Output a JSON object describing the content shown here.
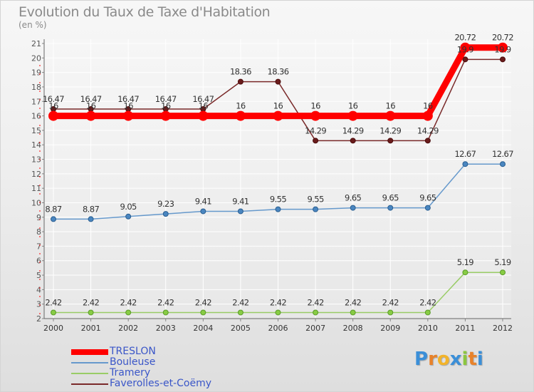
{
  "chart_data": {
    "type": "line",
    "title": "Evolution du Taux de Taxe d'Habitation",
    "ylabel": "(en %)",
    "xlabel": "",
    "ylim": [
      2,
      21
    ],
    "yticks": [
      2,
      3,
      4,
      5,
      6,
      7,
      8,
      9,
      10,
      11,
      12,
      13,
      14,
      15,
      16,
      17,
      18,
      19,
      20,
      21
    ],
    "categories": [
      "2000",
      "2001",
      "2002",
      "2003",
      "2004",
      "2005",
      "2006",
      "2007",
      "2008",
      "2009",
      "2010",
      "2011",
      "2012"
    ],
    "legend_position": "bottom-left",
    "series": [
      {
        "name": "TRESLON",
        "color": "#ff0000",
        "values": [
          16,
          16,
          16,
          16,
          16,
          16,
          16,
          16,
          16,
          16,
          16,
          20.72,
          20.72
        ],
        "labels": [
          "16",
          "16",
          "16",
          "16",
          "16",
          "16",
          "16",
          "16",
          "16",
          "16",
          "16",
          "20.72",
          "20.72"
        ]
      },
      {
        "name": "Bouleuse",
        "color": "#6699cc",
        "values": [
          8.87,
          8.87,
          9.05,
          9.23,
          9.41,
          9.41,
          9.55,
          9.55,
          9.65,
          9.65,
          9.65,
          12.67,
          12.67
        ],
        "labels": [
          "8.87",
          "8.87",
          "9.05",
          "9.23",
          "9.41",
          "9.41",
          "9.55",
          "9.55",
          "9.65",
          "9.65",
          "9.65",
          "12.67",
          "12.67"
        ]
      },
      {
        "name": "Tramery",
        "color": "#99cc66",
        "values": [
          2.42,
          2.42,
          2.42,
          2.42,
          2.42,
          2.42,
          2.42,
          2.42,
          2.42,
          2.42,
          2.42,
          5.19,
          5.19
        ],
        "labels": [
          "2.42",
          "2.42",
          "2.42",
          "2.42",
          "2.42",
          "2.42",
          "2.42",
          "2.42",
          "2.42",
          "2.42",
          "2.42",
          "5.19",
          "5.19"
        ]
      },
      {
        "name": "Faverolles-et-Coëmy",
        "color": "#7a2a2a",
        "values": [
          16.47,
          16.47,
          16.47,
          16.47,
          16.47,
          18.36,
          18.36,
          14.29,
          14.29,
          14.29,
          14.29,
          19.9,
          19.9
        ],
        "labels": [
          "16.47",
          "16.47",
          "16.47",
          "16.47",
          "16.47",
          "18.36",
          "18.36",
          "14.29",
          "14.29",
          "14.29",
          "14.29",
          "19.9",
          "19.9"
        ]
      }
    ]
  },
  "brand": {
    "letters": [
      "P",
      "r",
      "o",
      "x",
      "i",
      "t",
      "i"
    ],
    "colors": [
      "#3b8fd8",
      "#e8822a",
      "#f2b32a",
      "#3b8fd8",
      "#8cc63f",
      "#e8822a",
      "#3b8fd8"
    ]
  }
}
